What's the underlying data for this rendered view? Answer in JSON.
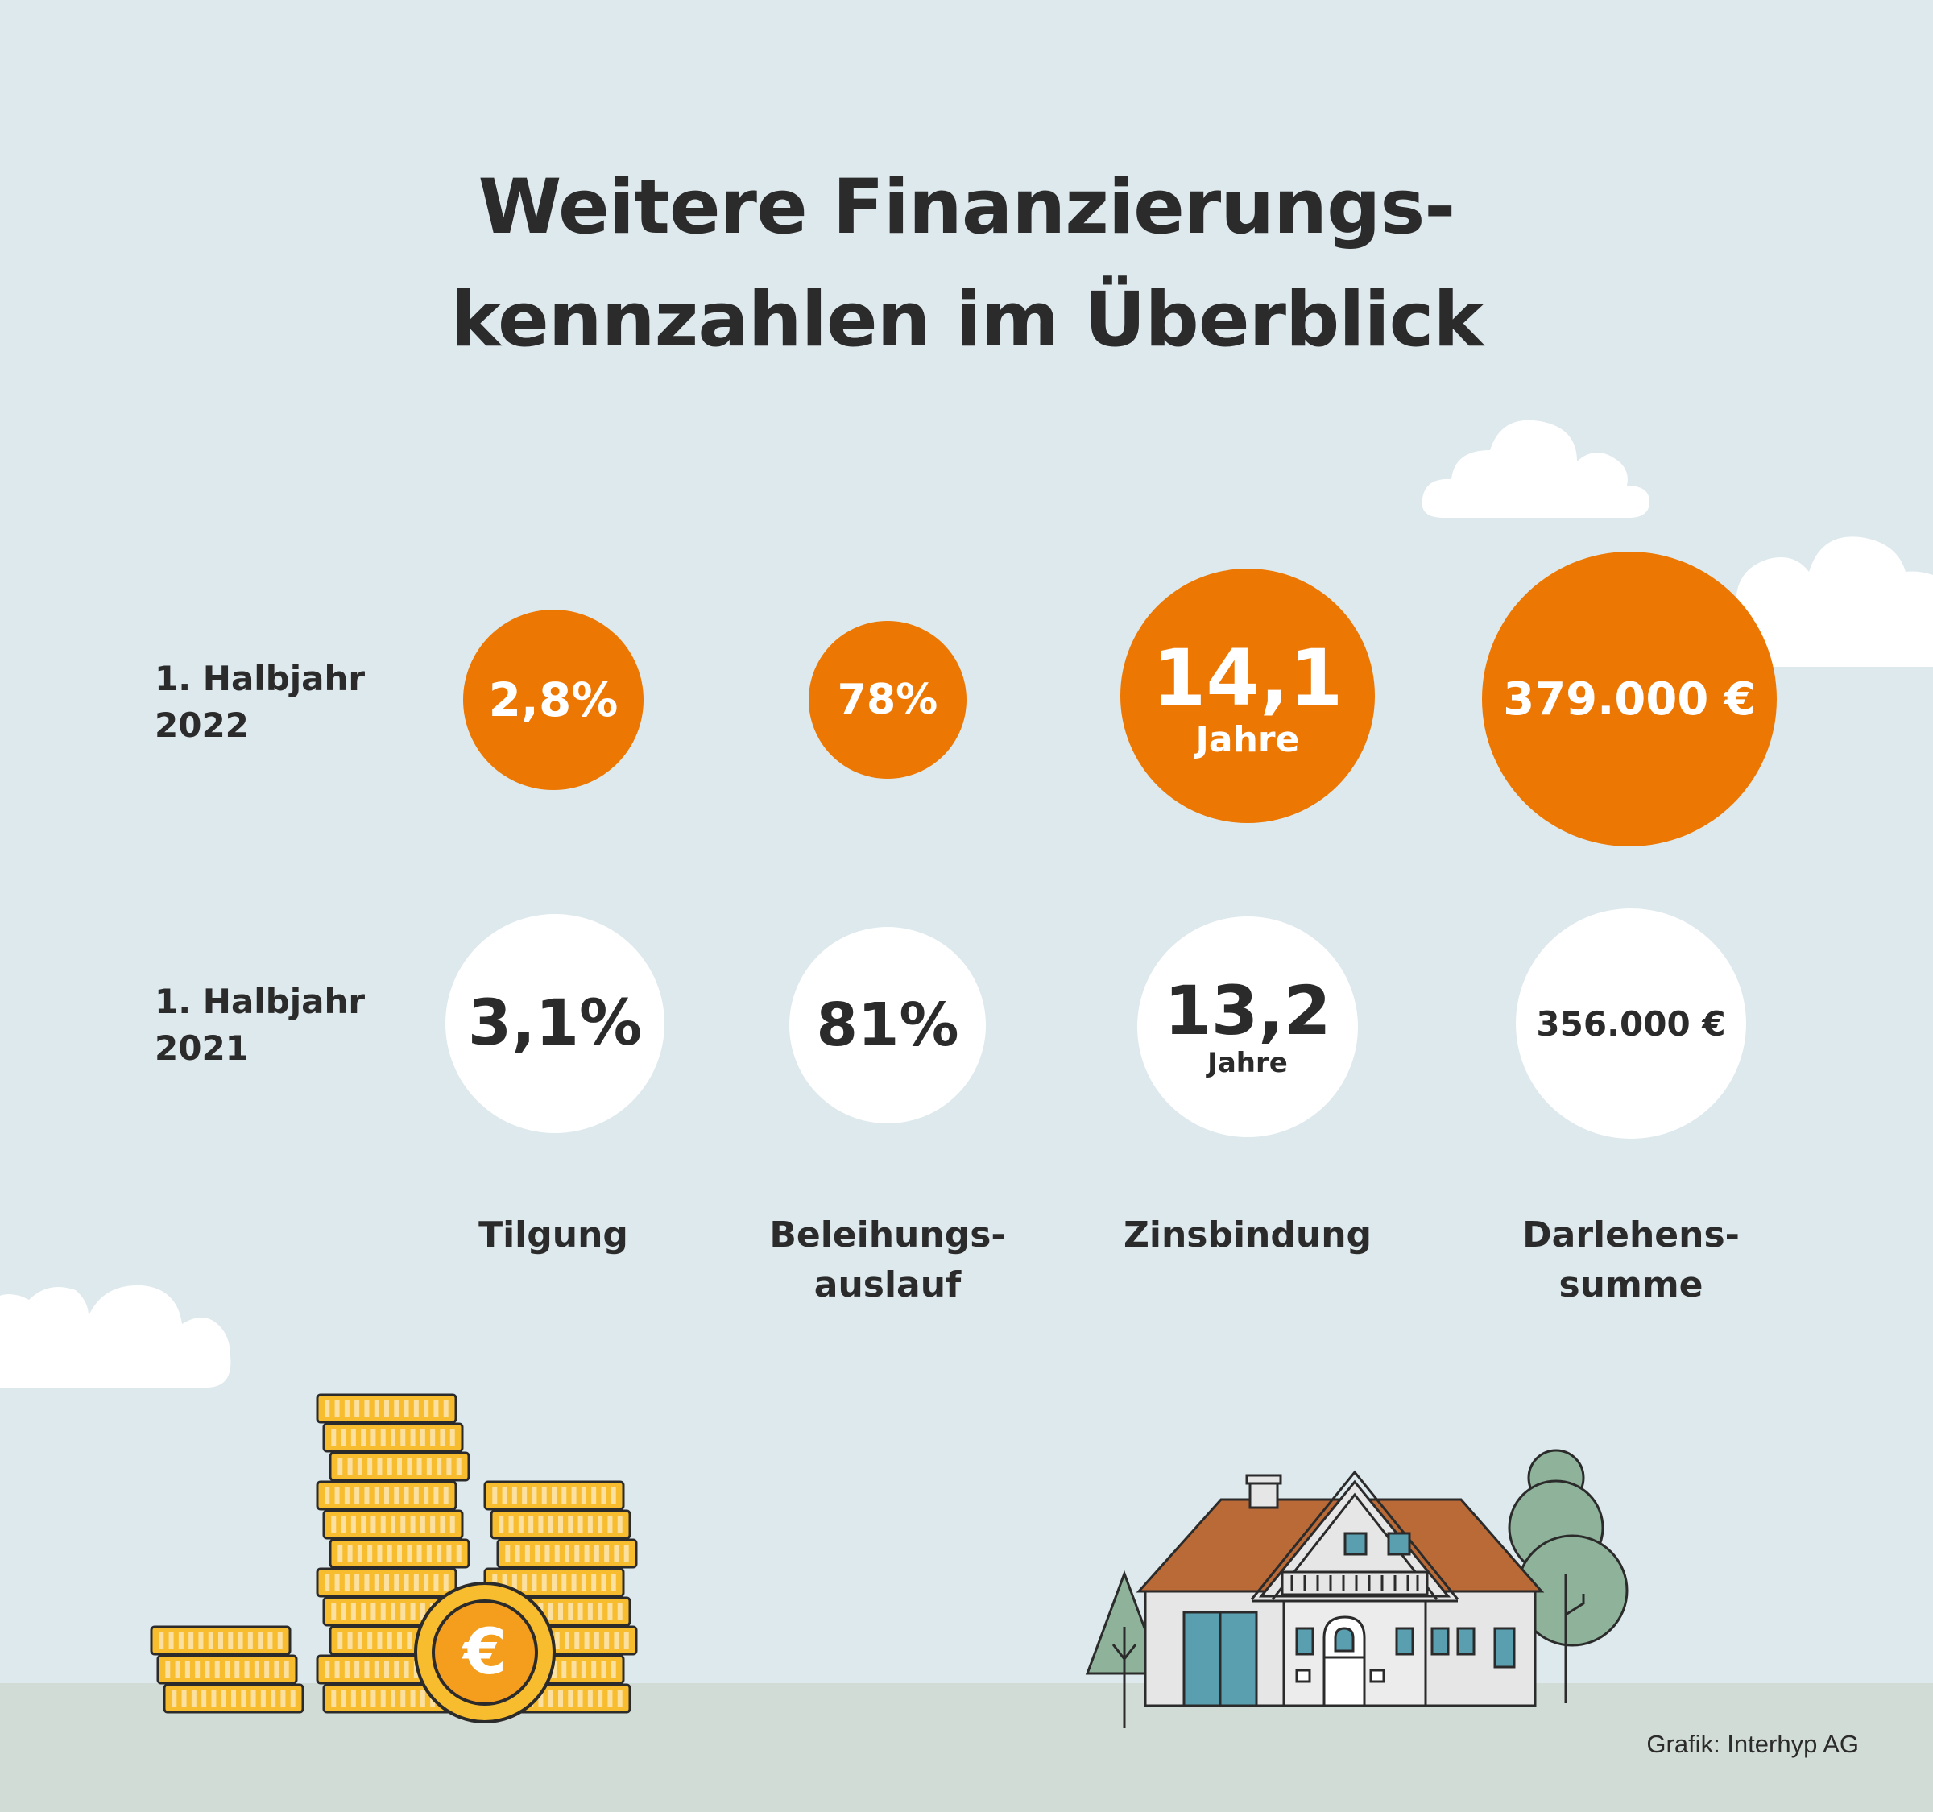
{
  "title": {
    "line1": "Weitere Finanzierungs-",
    "line2": "kennzahlen im Überblick"
  },
  "rows": [
    {
      "label_line1": "1. Halbjahr",
      "label_line2": "2022"
    },
    {
      "label_line1": "1. Halbjahr",
      "label_line2": "2021"
    }
  ],
  "values_2022": {
    "tilgung": "2,8%",
    "beleihungsauslauf": "78%",
    "zinsbindung": "14,1",
    "zinsbindung_unit": "Jahre",
    "darlehenssumme": "379.000 €"
  },
  "values_2021": {
    "tilgung": "3,1%",
    "beleihungsauslauf": "81%",
    "zinsbindung": "13,2",
    "zinsbindung_unit": "Jahre",
    "darlehenssumme": "356.000 €"
  },
  "columns": {
    "tilgung": "Tilgung",
    "beleihungsauslauf_line1": "Beleihungs-",
    "beleihungsauslauf_line2": "auslauf",
    "zinsbindung": "Zinsbindung",
    "darlehenssumme_line1": "Darlehens-",
    "darlehenssumme_line2": "summe"
  },
  "coin_symbol": "€",
  "credit": "Grafik: Interhyp AG",
  "colors": {
    "background": "#dde9ed",
    "accent_orange": "#ec7703",
    "text": "#2b2b2b",
    "ground": "#d2dcd6",
    "coin": "#f7bd2f"
  },
  "illustrations": [
    "clouds",
    "coin-stacks",
    "euro-coin",
    "house",
    "trees"
  ]
}
